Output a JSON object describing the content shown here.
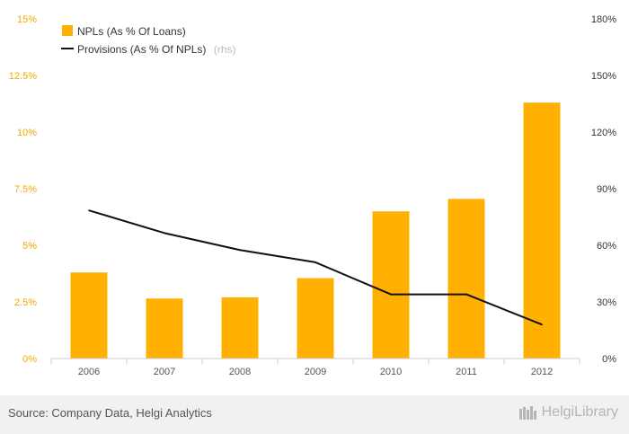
{
  "chart_data": {
    "type": "bar",
    "categories": [
      "2006",
      "2007",
      "2008",
      "2009",
      "2010",
      "2011",
      "2012"
    ],
    "series": [
      {
        "name": "NPLs (As % Of Loans)",
        "type": "bar",
        "axis": "left",
        "color": "#ffb000",
        "values": [
          3.8,
          2.65,
          2.7,
          3.55,
          6.5,
          7.05,
          11.3
        ]
      },
      {
        "name": "Provisions (As % Of NPLs)",
        "name_suffix": "(rhs)",
        "type": "line",
        "axis": "right",
        "color": "#111111",
        "values": [
          78.5,
          66.5,
          57.5,
          51,
          34,
          34,
          18
        ]
      }
    ],
    "ylim_left": [
      0,
      15
    ],
    "ylim_right": [
      0,
      180
    ],
    "yticks_left": [
      "0%",
      "2.5%",
      "5%",
      "7.5%",
      "10%",
      "12.5%",
      "15%"
    ],
    "yticks_right": [
      "0%",
      "30%",
      "60%",
      "90%",
      "120%",
      "150%",
      "180%"
    ],
    "legend_position": "top-left",
    "grid": false
  },
  "footer": {
    "source": "Source: Company Data, Helgi Analytics",
    "logo_text": "HelgiLibrary"
  },
  "colors": {
    "bar": "#ffb000",
    "line": "#111111",
    "left_axis_text": "#f2a900"
  }
}
